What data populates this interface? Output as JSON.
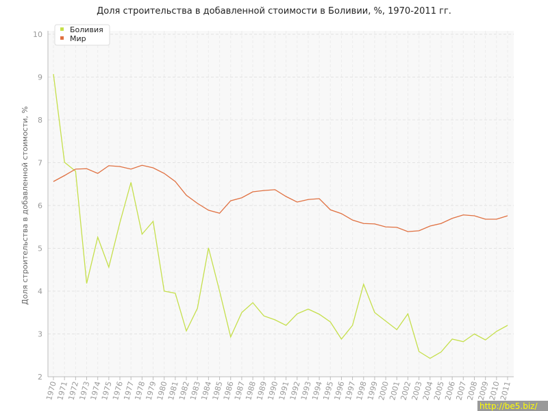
{
  "chart_data": {
    "type": "line",
    "title": "Доля строительства в добавленной стоимости в Боливии, %, 1970-2011 гг.",
    "y_label": "Доля строительства в добавленной стоимости, %",
    "categories": [
      "1970",
      "1971",
      "1972",
      "1973",
      "1974",
      "1975",
      "1976",
      "1977",
      "1978",
      "1979",
      "1980",
      "1981",
      "1982",
      "1983",
      "1984",
      "1985",
      "1986",
      "1987",
      "1988",
      "1989",
      "1990",
      "1991",
      "1992",
      "1993",
      "1994",
      "1995",
      "1996",
      "1997",
      "1998",
      "1999",
      "2000",
      "2001",
      "2002",
      "2003",
      "2004",
      "2005",
      "2006",
      "2007",
      "2008",
      "2009",
      "2010",
      "2011"
    ],
    "series": [
      {
        "name": "Боливия",
        "color": "#c5df4a",
        "values": [
          9.07,
          7.01,
          6.8,
          4.18,
          5.26,
          4.56,
          5.6,
          6.54,
          5.33,
          5.63,
          4.0,
          3.95,
          3.07,
          3.6,
          5.01,
          4.0,
          2.93,
          3.5,
          3.73,
          3.42,
          3.33,
          3.2,
          3.47,
          3.58,
          3.46,
          3.28,
          2.88,
          3.2,
          4.16,
          3.5,
          3.3,
          3.1,
          3.47,
          2.59,
          2.43,
          2.58,
          2.88,
          2.82,
          3.0,
          2.86,
          3.06,
          3.2
        ]
      },
      {
        "name": "Мир",
        "color": "#e07040",
        "values": [
          6.56,
          6.7,
          6.85,
          6.86,
          6.75,
          6.93,
          6.91,
          6.85,
          6.94,
          6.88,
          6.75,
          6.56,
          6.24,
          6.05,
          5.89,
          5.82,
          6.11,
          6.18,
          6.32,
          6.35,
          6.37,
          6.21,
          6.08,
          6.14,
          6.16,
          5.9,
          5.81,
          5.66,
          5.58,
          5.57,
          5.5,
          5.49,
          5.39,
          5.41,
          5.52,
          5.58,
          5.7,
          5.78,
          5.76,
          5.68,
          5.68,
          5.76
        ]
      }
    ],
    "ylim": [
      2,
      10
    ],
    "yticks": [
      2,
      3,
      4,
      5,
      6,
      7,
      8,
      9,
      10
    ],
    "grid": true,
    "legend": "top-left",
    "watermark": "http://be5.biz/"
  }
}
